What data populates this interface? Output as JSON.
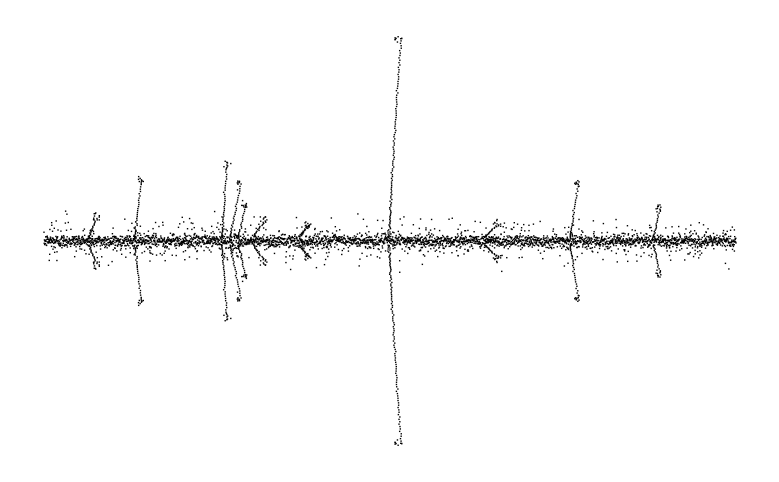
{
  "chart_data": {
    "type": "scatter",
    "title": "",
    "xlabel": "",
    "ylabel": "",
    "grid": false,
    "legend": "none",
    "axes_visible": false,
    "marker_color": "#000000",
    "background": "#ffffff",
    "xlim": [
      0,
      100
    ],
    "ylim": [
      -100,
      100
    ],
    "symmetric_about_zero": true,
    "baseline": {
      "y": 0,
      "noise_amplitude": 2.5,
      "point_count": 3200
    },
    "features": [
      {
        "x": 7.0,
        "peak": 12,
        "width": 0.9,
        "sign": 1
      },
      {
        "x": 13.5,
        "peak": 29,
        "width": 0.6,
        "sign": 1
      },
      {
        "x": 26.0,
        "peak": 36,
        "width": 0.5,
        "sign": 1
      },
      {
        "x": 27.5,
        "peak": 27,
        "width": 1.0,
        "sign": 1
      },
      {
        "x": 28.5,
        "peak": 17,
        "width": 0.7,
        "sign": 1
      },
      {
        "x": 31.0,
        "peak": 10,
        "width": 1.2,
        "sign": 1
      },
      {
        "x": 37.5,
        "peak": 8,
        "width": 1.0,
        "sign": 1
      },
      {
        "x": 50.5,
        "peak": 96,
        "width": 1.1,
        "sign": 1
      },
      {
        "x": 64.5,
        "peak": 8,
        "width": 1.4,
        "sign": 1
      },
      {
        "x": 76.5,
        "peak": 28,
        "width": 0.8,
        "sign": 1
      },
      {
        "x": 88.5,
        "peak": 16,
        "width": 0.6,
        "sign": 1
      }
    ]
  }
}
